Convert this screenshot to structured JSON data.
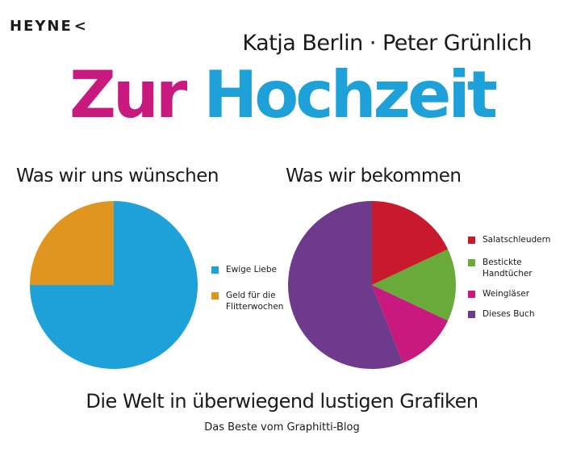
{
  "publisher": {
    "name": "HEYNE",
    "mark": "<"
  },
  "authors": "Katja Berlin · Peter Grünlich",
  "title": {
    "word1": "Zur",
    "word2": "Hochzeit"
  },
  "subtitle": "Die Welt in überwiegend lustigen Grafiken",
  "subsubtitle": "Das Beste vom Graphitti-Blog",
  "chart_data": [
    {
      "type": "pie",
      "title": "Was wir uns wünschen",
      "legend_position": "right",
      "slices": [
        {
          "label": "Ewige Liebe",
          "value": 75,
          "color": "#1ea1d8"
        },
        {
          "label": "Geld für die\nFlitterwochen",
          "value": 25,
          "color": "#e0951f"
        }
      ]
    },
    {
      "type": "pie",
      "title": "Was wir bekommen",
      "legend_position": "right",
      "slices": [
        {
          "label": "Salatschleudern",
          "value": 18,
          "color": "#c81a2c"
        },
        {
          "label": "Bestickte\nHandtücher",
          "value": 14,
          "color": "#6aaa3a"
        },
        {
          "label": "Weingläser",
          "value": 12,
          "color": "#c8197e"
        },
        {
          "label": "Dieses Buch",
          "value": 56,
          "color": "#6e3a8c"
        }
      ]
    }
  ]
}
